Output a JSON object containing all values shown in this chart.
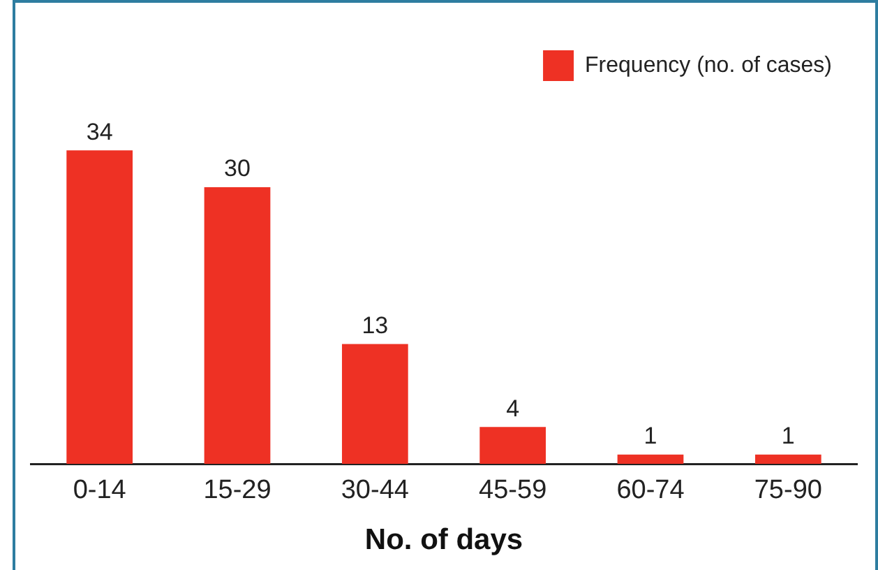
{
  "chart_data": {
    "type": "bar",
    "xlabel": "No. of days",
    "categories": [
      "0-14",
      "15-29",
      "30-44",
      "45-59",
      "60-74",
      "75-90"
    ],
    "series": [
      {
        "name": "Frequency (no. of cases)",
        "color": "#ee3124",
        "values": [
          34,
          30,
          13,
          4,
          1,
          1
        ]
      }
    ],
    "data_labels": true,
    "legend": "top right",
    "grid": false
  }
}
